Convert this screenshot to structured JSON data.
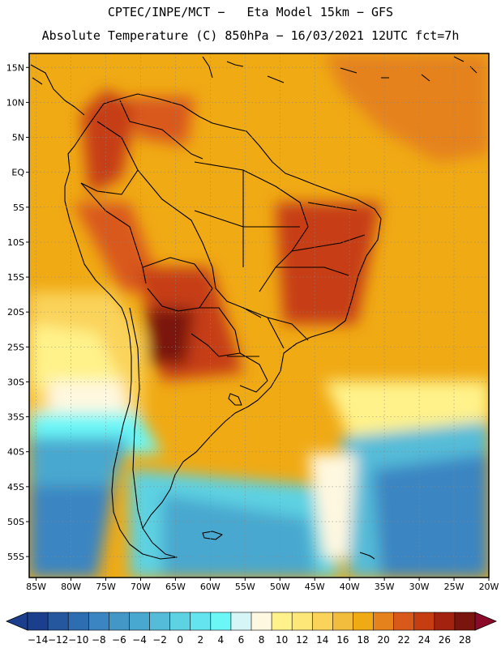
{
  "header": {
    "line1": "CPTEC/INPE/MCT −   Eta Model 15km − GFS",
    "line2": "Absolute Temperature (C) 850hPa − 16/03/2021 12UTC fct=7h"
  },
  "map": {
    "lat_labels": [
      "15N",
      "10N",
      "5N",
      "EQ",
      "5S",
      "10S",
      "15S",
      "20S",
      "25S",
      "30S",
      "35S",
      "40S",
      "45S",
      "50S",
      "55S"
    ],
    "lon_labels": [
      "85W",
      "80W",
      "75W",
      "70W",
      "65W",
      "60W",
      "55W",
      "50W",
      "45W",
      "40W",
      "35W",
      "30W",
      "25W",
      "20W"
    ],
    "lat_values": [
      15,
      10,
      5,
      0,
      -5,
      -10,
      -15,
      -20,
      -25,
      -30,
      -35,
      -40,
      -45,
      -50,
      -55
    ],
    "lon_values": [
      -85,
      -80,
      -75,
      -70,
      -65,
      -60,
      -55,
      -50,
      -45,
      -40,
      -35,
      -30,
      -25,
      -20
    ],
    "extent": {
      "lon_min": -86,
      "lon_max": -20,
      "lat_min": -58,
      "lat_max": 17
    }
  },
  "colorbar": {
    "labels": [
      "-14",
      "-12",
      "-10",
      "-8",
      "-6",
      "-4",
      "-2",
      "0",
      "2",
      "4",
      "6",
      "8",
      "10",
      "12",
      "14",
      "16",
      "18",
      "20",
      "22",
      "24",
      "26",
      "28"
    ],
    "colors": [
      "#1b3f8c",
      "#24579e",
      "#2d6db2",
      "#3a85c2",
      "#4297c7",
      "#49a8cf",
      "#54bcd8",
      "#5dd2e2",
      "#63e4ee",
      "#6cf7f7",
      "#d6f5f7",
      "#fff8e0",
      "#fff28a",
      "#fde778",
      "#fad35a",
      "#f2bc3c",
      "#f0aa14",
      "#e5821b",
      "#d9591a",
      "#c63d12",
      "#a3220f",
      "#7a150e"
    ]
  }
}
